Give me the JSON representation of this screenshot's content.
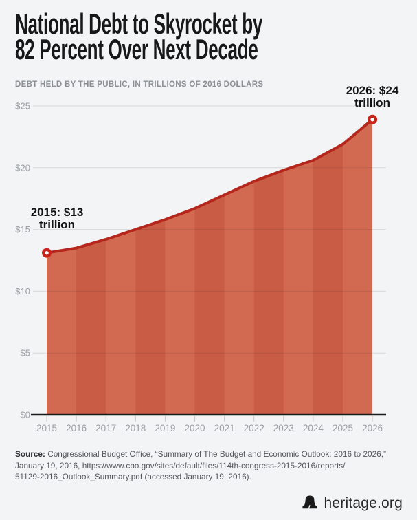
{
  "title": {
    "line1": "National Debt to Skyrocket by",
    "line2": "82 Percent Over Next Decade"
  },
  "subtitle": "DEBT HELD BY THE PUBLIC, IN TRILLIONS OF 2016 DOLLARS",
  "chart_data": {
    "type": "area",
    "x": [
      2015,
      2016,
      2017,
      2018,
      2019,
      2020,
      2021,
      2022,
      2023,
      2024,
      2025,
      2026
    ],
    "series": [
      {
        "name": "Debt held by the public, trillions of 2016 dollars",
        "values": [
          13.1,
          13.5,
          14.2,
          15.0,
          15.8,
          16.7,
          17.8,
          18.9,
          19.8,
          20.6,
          21.9,
          23.9
        ]
      }
    ],
    "ylim": [
      0,
      25
    ],
    "ytick_step": 5,
    "ytick_labels": [
      "$0",
      "$5",
      "$10",
      "$15",
      "$20",
      "$25"
    ],
    "xtick_labels": [
      "2015",
      "2016",
      "2017",
      "2018",
      "2019",
      "2020",
      "2021",
      "2022",
      "2023",
      "2024",
      "2025",
      "2026"
    ],
    "grid": true,
    "legend_position": "none",
    "annotations": [
      {
        "x": 2015,
        "value": 13,
        "text": "2015: $13 trillion"
      },
      {
        "x": 2026,
        "value": 24,
        "text": "2026: $24 trillion"
      }
    ]
  },
  "annotations": {
    "start": {
      "line1": "2015: $13",
      "line2": "trillion"
    },
    "end": {
      "line1": "2026: $24",
      "line2": "trillion"
    }
  },
  "source": {
    "label": "Source:",
    "line1": "Congressional Budget Office, “Summary of The Budget and Economic Outlook: 2016 to 2026,”",
    "line2": "January 19, 2016, https://www.cbo.gov/sites/default/files/114th-congress-2015-2016/reports/",
    "line3": "51129-2016_Outlook_Summary.pdf (accessed January 19, 2016)."
  },
  "footer": {
    "brand": "heritage.org"
  },
  "colors": {
    "background": "#f3f4f5",
    "band_light": "#d26a51",
    "band_dark": "#c85c45",
    "line": "#b5271d",
    "marker": "#c7241b",
    "marker_hole": "#ffffff",
    "grid": "rgba(30,30,30,0.13)",
    "axis": "#1a1a1a",
    "tick": "#c6c8ca",
    "axis_label": "#9aa0a4",
    "title_text": "#17181a",
    "subtitle_text": "#8b9095"
  }
}
